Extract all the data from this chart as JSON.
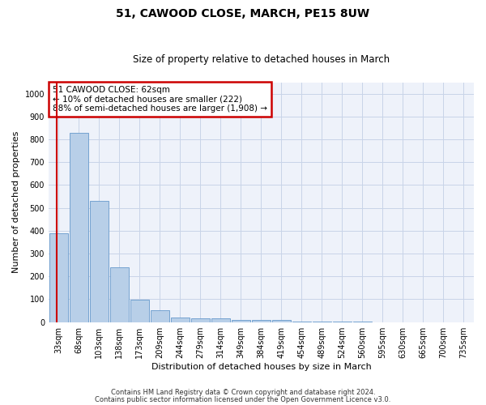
{
  "title": "51, CAWOOD CLOSE, MARCH, PE15 8UW",
  "subtitle": "Size of property relative to detached houses in March",
  "xlabel": "Distribution of detached houses by size in March",
  "ylabel": "Number of detached properties",
  "bar_labels": [
    "33sqm",
    "68sqm",
    "103sqm",
    "138sqm",
    "173sqm",
    "209sqm",
    "244sqm",
    "279sqm",
    "314sqm",
    "349sqm",
    "384sqm",
    "419sqm",
    "454sqm",
    "489sqm",
    "524sqm",
    "560sqm",
    "595sqm",
    "630sqm",
    "665sqm",
    "700sqm",
    "735sqm"
  ],
  "bar_values": [
    390,
    830,
    530,
    240,
    97,
    52,
    20,
    18,
    15,
    10,
    10,
    8,
    2,
    1,
    1,
    1,
    0,
    0,
    0,
    0,
    0
  ],
  "bar_color": "#b8cfe8",
  "bar_edge_color": "#6699cc",
  "grid_color": "#c8d4e8",
  "annotation_text_line1": "51 CAWOOD CLOSE: 62sqm",
  "annotation_text_line2": "← 10% of detached houses are smaller (222)",
  "annotation_text_line3": "88% of semi-detached houses are larger (1,908) →",
  "annotation_box_color": "#ffffff",
  "annotation_box_edge_color": "#cc0000",
  "vline_color": "#cc0000",
  "ylim": [
    0,
    1050
  ],
  "yticks": [
    0,
    100,
    200,
    300,
    400,
    500,
    600,
    700,
    800,
    900,
    1000
  ],
  "footnote1": "Contains HM Land Registry data © Crown copyright and database right 2024.",
  "footnote2": "Contains public sector information licensed under the Open Government Licence v3.0.",
  "bg_color": "#eef2fa",
  "title_fontsize": 10,
  "subtitle_fontsize": 8.5,
  "tick_fontsize": 7,
  "label_fontsize": 8,
  "footnote_fontsize": 6
}
